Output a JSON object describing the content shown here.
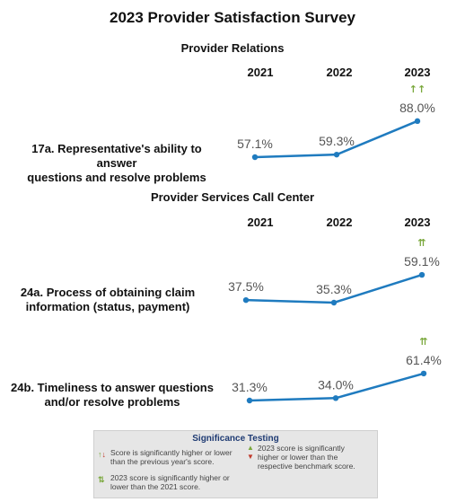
{
  "title": "2023 Provider Satisfaction Survey",
  "sections": [
    {
      "name": "Provider Relations",
      "years": [
        "2021",
        "2022",
        "2023"
      ],
      "questions": [
        {
          "label_line1": "17a. Representative's ability to answer",
          "label_line2": "questions and resolve problems",
          "labels": [
            "57.1%",
            "59.3%",
            "88.0%"
          ],
          "sig_marker": "↑↑"
        }
      ]
    },
    {
      "name": "Provider Services Call Center",
      "years": [
        "2021",
        "2022",
        "2023"
      ],
      "questions": [
        {
          "label_line1": "24a. Process of obtaining claim",
          "label_line2": "information (status, payment)",
          "labels": [
            "37.5%",
            "35.3%",
            "59.1%"
          ],
          "sig_marker": "⇈"
        },
        {
          "label_line1": "24b. Timeliness to answer questions",
          "label_line2": "and/or resolve problems",
          "labels": [
            "31.3%",
            "34.0%",
            "61.4%"
          ],
          "sig_marker": "⇈"
        }
      ]
    }
  ],
  "legend": {
    "title": "Significance Testing",
    "items": [
      {
        "icon": "↑↓",
        "line1": "Score is significantly higher or lower",
        "line2": "than the previous year's score."
      },
      {
        "icon": "⇅",
        "line1": "2023 score is significantly higher or",
        "line2": "lower than the 2021 score."
      },
      {
        "icon": "▲▼",
        "line1": "2023 score is significantly",
        "line2": "higher or lower than the",
        "line3": "respective benchmark score."
      }
    ]
  },
  "colors": {
    "line": "#1f7bbf",
    "marker_up": "#7aa83c",
    "marker_down": "#c0392b"
  },
  "chart_data": [
    {
      "type": "line",
      "title": "17a. Representative's ability to answer questions and resolve problems",
      "categories": [
        "2021",
        "2022",
        "2023"
      ],
      "values": [
        57.1,
        59.3,
        88.0
      ],
      "ylim": [
        0,
        100
      ]
    },
    {
      "type": "line",
      "title": "24a. Process of obtaining claim information (status, payment)",
      "categories": [
        "2021",
        "2022",
        "2023"
      ],
      "values": [
        37.5,
        35.3,
        59.1
      ],
      "ylim": [
        0,
        100
      ]
    },
    {
      "type": "line",
      "title": "24b. Timeliness to answer questions and/or resolve problems",
      "categories": [
        "2021",
        "2022",
        "2023"
      ],
      "values": [
        31.3,
        34.0,
        61.4
      ],
      "ylim": [
        0,
        100
      ]
    }
  ]
}
